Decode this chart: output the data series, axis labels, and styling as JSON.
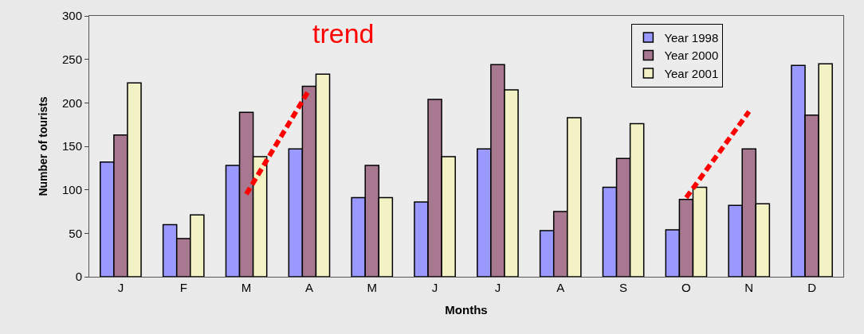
{
  "chart_data": {
    "type": "bar",
    "xlabel": "Months",
    "ylabel": "Number of tourists",
    "categories": [
      "J",
      "F",
      "M",
      "A",
      "M",
      "J",
      "J",
      "A",
      "S",
      "O",
      "N",
      "D"
    ],
    "series": [
      {
        "name": "Year 1998",
        "color": "#9999ff",
        "values": [
          132,
          60,
          128,
          147,
          91,
          86,
          147,
          53,
          103,
          54,
          82,
          243
        ]
      },
      {
        "name": "Year 2000",
        "color": "#a87890",
        "values": [
          163,
          44,
          189,
          219,
          128,
          204,
          244,
          75,
          136,
          89,
          147,
          186
        ]
      },
      {
        "name": "Year 2001",
        "color": "#f2f2c4",
        "values": [
          223,
          71,
          138,
          233,
          91,
          138,
          215,
          183,
          176,
          103,
          84,
          245
        ]
      },
      {
        "type": "line",
        "color": "#ff0000",
        "line_style": "dashed",
        "values": [
          null,
          null,
          95,
          215,
          null,
          null,
          null,
          null,
          null,
          null,
          null,
          null
        ]
      },
      {
        "type": "line",
        "color": "#ff0000",
        "line_style": "dashed",
        "values": [
          null,
          null,
          null,
          null,
          null,
          null,
          null,
          null,
          null,
          91,
          190,
          null
        ]
      }
    ],
    "annotations": [
      "trend"
    ],
    "ylim": [
      0,
      300
    ],
    "yticks": [
      0,
      50,
      100,
      150,
      200,
      250,
      300
    ],
    "grid": false,
    "legend": "top right"
  }
}
